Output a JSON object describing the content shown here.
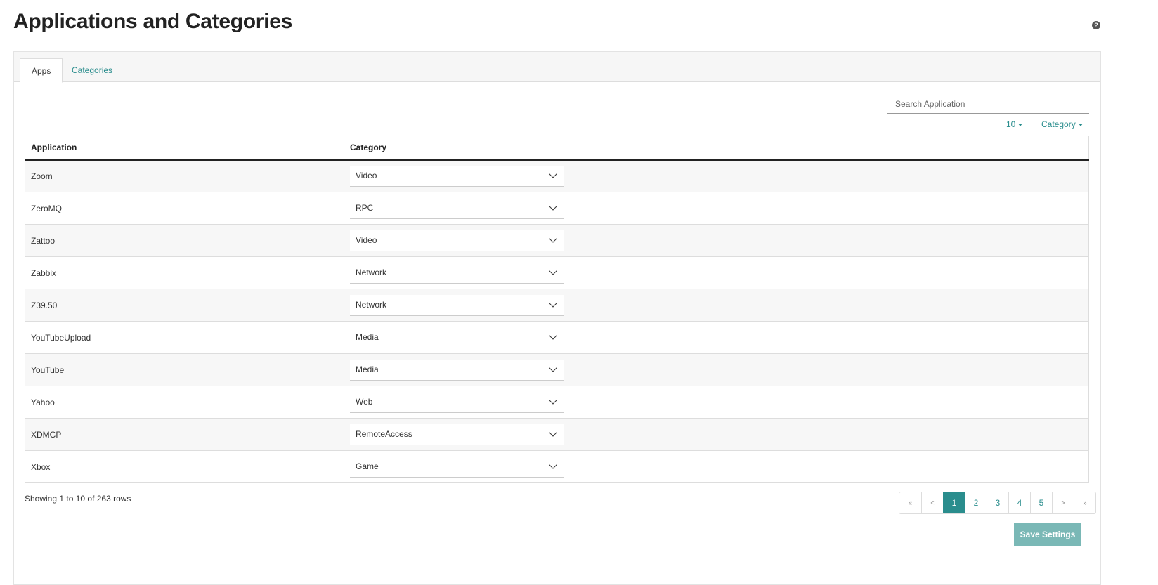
{
  "page": {
    "title": "Applications and Categories",
    "help_icon": "question-circle-icon"
  },
  "tabs": [
    {
      "label": "Apps",
      "active": true
    },
    {
      "label": "Categories",
      "active": false
    }
  ],
  "search": {
    "placeholder": "Search Application",
    "value": ""
  },
  "toolbar": {
    "page_size": "10",
    "category_filter": "Category"
  },
  "table": {
    "columns": [
      "Application",
      "Category"
    ],
    "rows": [
      {
        "application": "Zoom",
        "category": "Video"
      },
      {
        "application": "ZeroMQ",
        "category": "RPC"
      },
      {
        "application": "Zattoo",
        "category": "Video"
      },
      {
        "application": "Zabbix",
        "category": "Network"
      },
      {
        "application": "Z39.50",
        "category": "Network"
      },
      {
        "application": "YouTubeUpload",
        "category": "Media"
      },
      {
        "application": "YouTube",
        "category": "Media"
      },
      {
        "application": "Yahoo",
        "category": "Web"
      },
      {
        "application": "XDMCP",
        "category": "RemoteAccess"
      },
      {
        "application": "Xbox",
        "category": "Game"
      }
    ]
  },
  "footer": {
    "showing": "Showing 1 to 10 of 263 rows"
  },
  "pagination": {
    "first": "«",
    "prev": "<",
    "pages": [
      "1",
      "2",
      "3",
      "4",
      "5"
    ],
    "current": "1",
    "next": ">",
    "last": "»"
  },
  "actions": {
    "save_label": "Save Settings"
  },
  "colors": {
    "accent": "#2a8d8d",
    "save_button": "#7ab8b6"
  }
}
